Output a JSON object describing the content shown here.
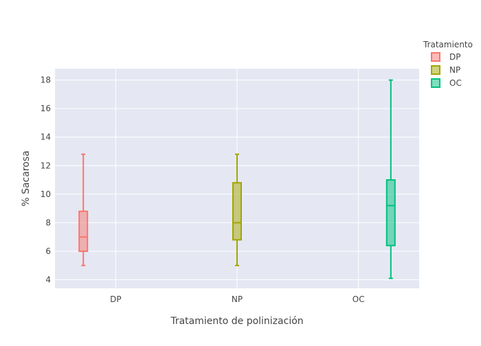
{
  "chart_data": {
    "type": "box",
    "title": "",
    "xlabel": "Tratamiento de polinización",
    "ylabel": "% Sacarosa",
    "categories": [
      "DP",
      "NP",
      "OC"
    ],
    "ylim": [
      3.4,
      18.8
    ],
    "yticks": [
      4,
      6,
      8,
      10,
      12,
      14,
      16,
      18
    ],
    "grid": true,
    "legend": {
      "title": "Tratamiento",
      "position": "right"
    },
    "series": [
      {
        "name": "DP",
        "category": "DP",
        "color": "#F8766D",
        "min": 5.0,
        "q1": 6.0,
        "median": 7.0,
        "q3": 8.8,
        "max": 12.8
      },
      {
        "name": "NP",
        "category": "NP",
        "color": "#A3A500",
        "min": 5.0,
        "q1": 6.8,
        "median": 8.0,
        "q3": 10.8,
        "max": 12.8
      },
      {
        "name": "OC",
        "category": "OC",
        "color": "#00BF7D",
        "min": 4.1,
        "q1": 6.4,
        "median": 9.2,
        "q3": 11.0,
        "max": 18.0
      }
    ]
  }
}
